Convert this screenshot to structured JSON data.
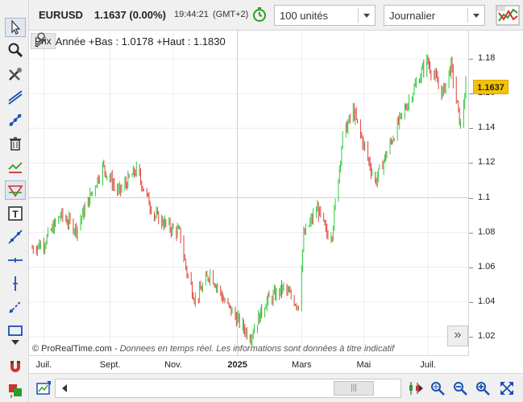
{
  "header": {
    "symbol": "EURUSD",
    "price_change": "1.1637 (0.00%)",
    "time": "19:44:21",
    "timezone": "(GMT+2)",
    "quantity": "100 unités",
    "period": "Journalier"
  },
  "legend": {
    "prix_label": "Prix",
    "range_text": "Année +Bas : 1.0178 +Haut : 1.1830"
  },
  "price_axis": {
    "ticks": [
      "1.18",
      "1.16",
      "1.14",
      "1.12",
      "1.1",
      "1.08",
      "1.06",
      "1.04",
      "1.02"
    ],
    "current_price": "1.1637"
  },
  "time_axis": {
    "ticks": [
      "Juil.",
      "Sept.",
      "Nov.",
      "2025",
      "Mars",
      "Mai",
      "Juil."
    ]
  },
  "footer": {
    "copyright": "© ProRealTime.com",
    "disclaimer": "- Donnees en temps réel. Les informations sont données à titre indicatif"
  },
  "colors": {
    "up": "#2ecc40",
    "down": "#e0413a",
    "price_marker": "#f5c200"
  },
  "icons": [
    "cursor-icon",
    "zoom-icon",
    "tools-icon",
    "trendline-icon",
    "points-icon",
    "trash-icon",
    "indicator-icon",
    "triangle-icon",
    "text-icon",
    "line-icon",
    "horizontal-line-icon",
    "vertical-line-icon",
    "ray-icon",
    "rectangle-icon",
    "arrow-down-icon",
    "magnet-icon",
    "template-icon"
  ],
  "chart_data": {
    "type": "candlestick",
    "title": "EURUSD",
    "ylim": [
      1.01,
      1.19
    ],
    "y_ticks": [
      1.02,
      1.04,
      1.06,
      1.08,
      1.1,
      1.12,
      1.14,
      1.16,
      1.18
    ],
    "x_ticks": [
      "Juil.",
      "Sept.",
      "Nov.",
      "2025",
      "Mars",
      "Mai",
      "Juil."
    ],
    "year_low": 1.0178,
    "year_high": 1.183,
    "last": 1.1637,
    "close_path": [
      {
        "date": "2024-06-20",
        "value": 1.071
      },
      {
        "date": "2024-07-01",
        "value": 1.074
      },
      {
        "date": "2024-07-17",
        "value": 1.09
      },
      {
        "date": "2024-08-01",
        "value": 1.082
      },
      {
        "date": "2024-08-26",
        "value": 1.118
      },
      {
        "date": "2024-09-10",
        "value": 1.103
      },
      {
        "date": "2024-09-27",
        "value": 1.116
      },
      {
        "date": "2024-10-14",
        "value": 1.09
      },
      {
        "date": "2024-10-31",
        "value": 1.082
      },
      {
        "date": "2024-11-07",
        "value": 1.08
      },
      {
        "date": "2024-11-14",
        "value": 1.057
      },
      {
        "date": "2024-11-22",
        "value": 1.041
      },
      {
        "date": "2024-12-06",
        "value": 1.057
      },
      {
        "date": "2024-12-20",
        "value": 1.04
      },
      {
        "date": "2025-01-13",
        "value": 1.02
      },
      {
        "date": "2025-01-28",
        "value": 1.04
      },
      {
        "date": "2025-02-14",
        "value": 1.048
      },
      {
        "date": "2025-02-28",
        "value": 1.038
      },
      {
        "date": "2025-03-05",
        "value": 1.078
      },
      {
        "date": "2025-03-18",
        "value": 1.094
      },
      {
        "date": "2025-03-27",
        "value": 1.079
      },
      {
        "date": "2025-04-01",
        "value": 1.08
      },
      {
        "date": "2025-04-11",
        "value": 1.135
      },
      {
        "date": "2025-04-21",
        "value": 1.15
      },
      {
        "date": "2025-05-12",
        "value": 1.109
      },
      {
        "date": "2025-06-03",
        "value": 1.143
      },
      {
        "date": "2025-06-30",
        "value": 1.179
      },
      {
        "date": "2025-07-15",
        "value": 1.16
      },
      {
        "date": "2025-07-23",
        "value": 1.176
      },
      {
        "date": "2025-08-01",
        "value": 1.141
      },
      {
        "date": "2025-08-06",
        "value": 1.1637
      }
    ]
  }
}
